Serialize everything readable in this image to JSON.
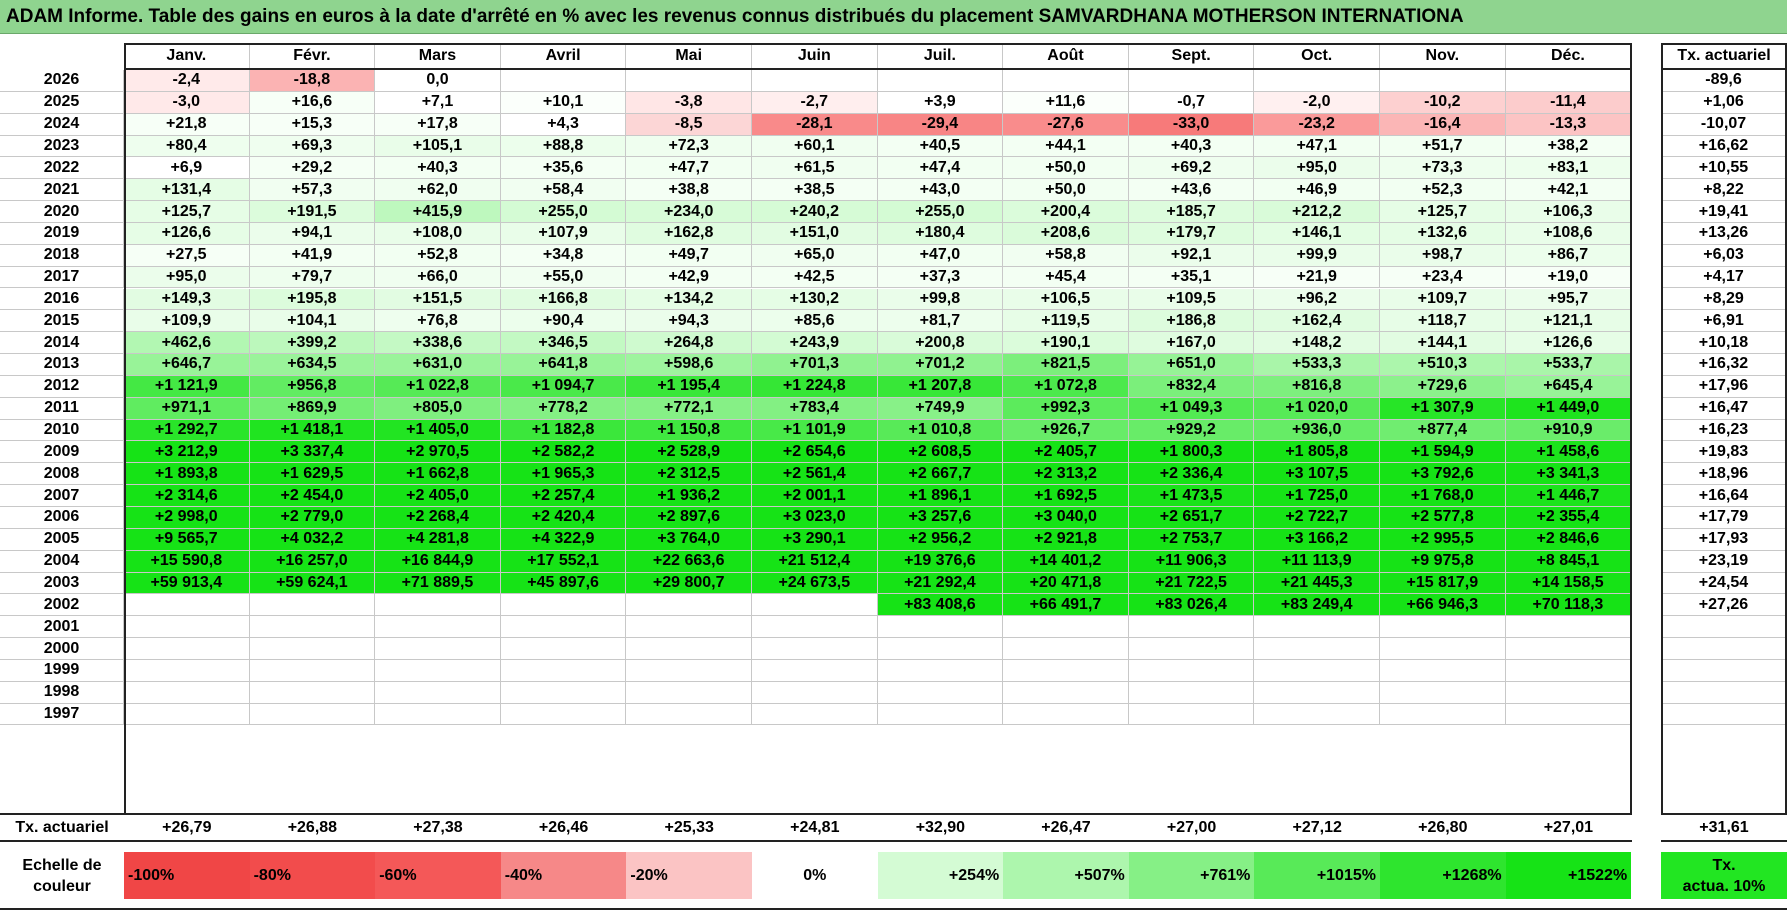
{
  "title": "ADAM Informe. Table des gains en euros à la date d'arrêté en % avec les revenus connus distribués du placement SAMVARDHANA MOTHERSON INTERNATIONA",
  "months": [
    "Janv.",
    "Févr.",
    "Mars",
    "Avril",
    "Mai",
    "Juin",
    "Juil.",
    "Août",
    "Sept.",
    "Oct.",
    "Nov.",
    "Déc."
  ],
  "tx_header": "Tx. actuariel",
  "rows": [
    {
      "year": "2026",
      "values": [
        "-2,4",
        "-18,8",
        "0,0",
        "",
        "",
        "",
        "",
        "",
        "",
        "",
        "",
        ""
      ],
      "colors": [
        "#ffeaea",
        "#fbb3b3",
        "#ffffff",
        "",
        "",
        "",
        "",
        "",
        "",
        "",
        "",
        ""
      ],
      "tx": "-89,6"
    },
    {
      "year": "2025",
      "values": [
        "-3,0",
        "+16,6",
        "+7,1",
        "+10,1",
        "-3,8",
        "-2,7",
        "+3,9",
        "+11,6",
        "-0,7",
        "-2,0",
        "-10,2",
        "-11,4"
      ],
      "colors": [
        "#ffe9e9",
        "#f7fff7",
        "#ffffff",
        "#fbfffb",
        "#ffe6e6",
        "#ffeeee",
        "#ffffff",
        "#fbfffb",
        "#ffffff",
        "#fff0f0",
        "#fdd0d0",
        "#fccccc"
      ],
      "tx": "+1,06"
    },
    {
      "year": "2024",
      "values": [
        "+21,8",
        "+15,3",
        "+17,8",
        "+4,3",
        "-8,5",
        "-28,1",
        "-29,4",
        "-27,6",
        "-33,0",
        "-23,2",
        "-16,4",
        "-13,3"
      ],
      "colors": [
        "#f7fff7",
        "#f7fff7",
        "#f7fff7",
        "#ffffff",
        "#fcd6d6",
        "#f98a8a",
        "#f88585",
        "#f98c8c",
        "#f77a7a",
        "#fa9a9a",
        "#fbb6b6",
        "#fcc4c4"
      ],
      "tx": "-10,07"
    },
    {
      "year": "2023",
      "values": [
        "+80,4",
        "+69,3",
        "+105,1",
        "+88,8",
        "+72,3",
        "+60,1",
        "+40,5",
        "+44,1",
        "+40,3",
        "+47,1",
        "+51,7",
        "+38,2"
      ],
      "colors": [
        "#eefeee",
        "#effeef",
        "#e9fde9",
        "#ecfeec",
        "#effeef",
        "#f0fef0",
        "#f3fff3",
        "#f3fff3",
        "#f3fff3",
        "#f2fff2",
        "#f2fff2",
        "#f4fff4"
      ],
      "tx": "+16,62"
    },
    {
      "year": "2022",
      "values": [
        "+6,9",
        "+29,2",
        "+40,3",
        "+35,6",
        "+47,7",
        "+61,5",
        "+47,4",
        "+50,0",
        "+69,2",
        "+95,0",
        "+73,3",
        "+83,1"
      ],
      "colors": [
        "#ffffff",
        "#f5fff5",
        "#f3fff3",
        "#f4fff4",
        "#f2fff2",
        "#f0fef0",
        "#f2fff2",
        "#f2fff2",
        "#effeef",
        "#ebfdeb",
        "#eefeee",
        "#edfeed"
      ],
      "tx": "+10,55"
    },
    {
      "year": "2021",
      "values": [
        "+131,4",
        "+57,3",
        "+62,0",
        "+58,4",
        "+38,8",
        "+38,5",
        "+43,0",
        "+50,0",
        "+43,6",
        "+46,9",
        "+52,3",
        "+42,1"
      ],
      "colors": [
        "#e5fde5",
        "#f1fef1",
        "#f0fef0",
        "#f1fef1",
        "#f4fff4",
        "#f4fff4",
        "#f3fff3",
        "#f2fff2",
        "#f3fff3",
        "#f2fff2",
        "#f2fff2",
        "#f3fff3"
      ],
      "tx": "+8,22"
    },
    {
      "year": "2020",
      "values": [
        "+125,7",
        "+191,5",
        "+415,9",
        "+255,0",
        "+234,0",
        "+240,2",
        "+255,0",
        "+200,4",
        "+185,7",
        "+212,2",
        "+125,7",
        "+106,3"
      ],
      "colors": [
        "#e6fde6",
        "#dcfcdc",
        "#bef8be",
        "#d4fbd4",
        "#d7fbd7",
        "#d6fbd6",
        "#d4fbd4",
        "#dbfcdb",
        "#ddfcdd",
        "#d9fbd9",
        "#e6fde6",
        "#e9fde9"
      ],
      "tx": "+19,41"
    },
    {
      "year": "2019",
      "values": [
        "+126,6",
        "+94,1",
        "+108,0",
        "+107,9",
        "+162,8",
        "+151,0",
        "+180,4",
        "+208,6",
        "+179,7",
        "+146,1",
        "+132,6",
        "+108,6"
      ],
      "colors": [
        "#e6fde6",
        "#ebfdeb",
        "#e9fde9",
        "#e9fde9",
        "#e0fce0",
        "#e2fce2",
        "#defcde",
        "#dafbda",
        "#defcde",
        "#e3fde3",
        "#e5fde5",
        "#e9fde9"
      ],
      "tx": "+13,26"
    },
    {
      "year": "2018",
      "values": [
        "+27,5",
        "+41,9",
        "+52,8",
        "+34,8",
        "+49,7",
        "+65,0",
        "+47,0",
        "+58,8",
        "+92,1",
        "+99,9",
        "+98,7",
        "+86,7"
      ],
      "colors": [
        "#f6fff6",
        "#f3fff3",
        "#f2fff2",
        "#f4fff4",
        "#f2fff2",
        "#f0fef0",
        "#f2fff2",
        "#f1fef1",
        "#ebfdeb",
        "#eafdea",
        "#eafdea",
        "#ecfeec"
      ],
      "tx": "+6,03"
    },
    {
      "year": "2017",
      "values": [
        "+95,0",
        "+79,7",
        "+66,0",
        "+55,0",
        "+42,9",
        "+42,5",
        "+37,3",
        "+45,4",
        "+35,1",
        "+21,9",
        "+23,4",
        "+19,0"
      ],
      "colors": [
        "#ebfdeb",
        "#eefeee",
        "#f0fef0",
        "#f1fef1",
        "#f3fff3",
        "#f3fff3",
        "#f4fff4",
        "#f3fff3",
        "#f4fff4",
        "#f7fff7",
        "#f6fff6",
        "#f7fff7"
      ],
      "tx": "+4,17"
    },
    {
      "year": "2016",
      "values": [
        "+149,3",
        "+195,8",
        "+151,5",
        "+166,8",
        "+134,2",
        "+130,2",
        "+99,8",
        "+106,5",
        "+109,5",
        "+96,2",
        "+109,7",
        "+95,7"
      ],
      "colors": [
        "#e2fce2",
        "#dcfcdc",
        "#e2fce2",
        "#e0fce0",
        "#e5fde5",
        "#e5fde5",
        "#eafdea",
        "#e9fde9",
        "#e9fde9",
        "#ebfdeb",
        "#e9fde9",
        "#ebfdeb"
      ],
      "tx": "+8,29"
    },
    {
      "year": "2015",
      "values": [
        "+109,9",
        "+104,1",
        "+76,8",
        "+90,4",
        "+94,3",
        "+85,6",
        "+81,7",
        "+119,5",
        "+186,8",
        "+162,4",
        "+118,7",
        "+121,1"
      ],
      "colors": [
        "#e9fde9",
        "#e9fde9",
        "#eefeee",
        "#ecfeec",
        "#ebfdeb",
        "#ecfeec",
        "#edfeed",
        "#e7fde7",
        "#ddfcdd",
        "#e0fce0",
        "#e7fde7",
        "#e7fde7"
      ],
      "tx": "+6,91"
    },
    {
      "year": "2014",
      "values": [
        "+462,6",
        "+399,2",
        "+338,6",
        "+346,5",
        "+264,8",
        "+243,9",
        "+200,8",
        "+190,1",
        "+167,0",
        "+148,2",
        "+144,1",
        "+126,6"
      ],
      "colors": [
        "#b2f7b2",
        "#bcf8bc",
        "#c4f9c4",
        "#c3f9c3",
        "#cffacf",
        "#d3fbd3",
        "#d9fbd9",
        "#dbfcdb",
        "#dffcdf",
        "#e2fce2",
        "#e2fce2",
        "#e6fde6"
      ],
      "tx": "+10,18"
    },
    {
      "year": "2013",
      "values": [
        "+646,7",
        "+634,5",
        "+631,0",
        "+641,8",
        "+598,6",
        "+701,3",
        "+701,2",
        "+821,5",
        "+651,0",
        "+533,3",
        "+510,3",
        "+533,7"
      ],
      "colors": [
        "#98f398",
        "#9af39a",
        "#9af39a",
        "#98f398",
        "#9ef49e",
        "#90f290",
        "#90f290",
        "#7cef7c",
        "#96f396",
        "#a9f5a9",
        "#acf6ac",
        "#a9f5a9"
      ],
      "tx": "+16,32"
    },
    {
      "year": "2012",
      "values": [
        "+1 121,9",
        "+956,8",
        "+1 022,8",
        "+1 094,7",
        "+1 195,4",
        "+1 224,8",
        "+1 207,8",
        "+1 072,8",
        "+832,4",
        "+816,8",
        "+729,6",
        "+645,4"
      ],
      "colors": [
        "#44e844",
        "#62ec62",
        "#56ea56",
        "#4ae94a",
        "#3ae73a",
        "#35e635",
        "#38e738",
        "#4ce94c",
        "#7bef7b",
        "#7eef7e",
        "#8cf18c",
        "#98f398"
      ],
      "tx": "+17,96"
    },
    {
      "year": "2011",
      "values": [
        "+971,1",
        "+869,9",
        "+805,0",
        "+778,2",
        "+772,1",
        "+783,4",
        "+749,9",
        "+992,3",
        "+1 049,3",
        "+1 020,0",
        "+1 307,9",
        "+1 449,0"
      ],
      "colors": [
        "#60ec60",
        "#74ee74",
        "#7fef7f",
        "#84f084",
        "#86f086",
        "#83f083",
        "#88f188",
        "#5ceb5c",
        "#52ea52",
        "#57ea57",
        "#27e527",
        "#1ee41e"
      ],
      "tx": "+16,47"
    },
    {
      "year": "2010",
      "values": [
        "+1 292,7",
        "+1 418,1",
        "+1 405,0",
        "+1 182,8",
        "+1 150,8",
        "+1 101,9",
        "+1 010,8",
        "+926,7",
        "+929,2",
        "+936,0",
        "+877,4",
        "+910,9"
      ],
      "colors": [
        "#29e529",
        "#20e420",
        "#22e422",
        "#3be73b",
        "#40e840",
        "#48e948",
        "#58ea58",
        "#68ec68",
        "#68ec68",
        "#66ec66",
        "#70ed70",
        "#6aec6a"
      ],
      "tx": "+16,23"
    },
    {
      "year": "2009",
      "values": [
        "+3 212,9",
        "+3 337,4",
        "+2 970,5",
        "+2 582,2",
        "+2 528,9",
        "+2 654,6",
        "+2 608,5",
        "+2 405,7",
        "+1 800,3",
        "+1 805,8",
        "+1 594,9",
        "+1 458,6"
      ],
      "colors": [
        "#16e316",
        "#16e316",
        "#16e316",
        "#16e316",
        "#16e316",
        "#16e316",
        "#16e316",
        "#16e316",
        "#16e316",
        "#16e316",
        "#16e316",
        "#1ce41c"
      ],
      "tx": "+19,83"
    },
    {
      "year": "2008",
      "values": [
        "+1 893,8",
        "+1 629,5",
        "+1 662,8",
        "+1 965,3",
        "+2 312,5",
        "+2 561,4",
        "+2 667,7",
        "+2 313,2",
        "+2 336,4",
        "+3 107,5",
        "+3 792,6",
        "+3 341,3"
      ],
      "colors": [
        "#16e316",
        "#16e316",
        "#16e316",
        "#16e316",
        "#16e316",
        "#16e316",
        "#16e316",
        "#16e316",
        "#16e316",
        "#16e316",
        "#16e316",
        "#16e316"
      ],
      "tx": "+18,96"
    },
    {
      "year": "2007",
      "values": [
        "+2 314,6",
        "+2 454,0",
        "+2 405,0",
        "+2 257,4",
        "+1 936,2",
        "+2 001,1",
        "+1 896,1",
        "+1 692,5",
        "+1 473,5",
        "+1 725,0",
        "+1 768,0",
        "+1 446,7"
      ],
      "colors": [
        "#16e316",
        "#16e316",
        "#16e316",
        "#16e316",
        "#16e316",
        "#16e316",
        "#16e316",
        "#16e316",
        "#1ae31a",
        "#16e316",
        "#16e316",
        "#1ce41c"
      ],
      "tx": "+16,64"
    },
    {
      "year": "2006",
      "values": [
        "+2 998,0",
        "+2 779,0",
        "+2 268,4",
        "+2 420,4",
        "+2 897,6",
        "+3 023,0",
        "+3 257,6",
        "+3 040,0",
        "+2 651,7",
        "+2 722,7",
        "+2 577,8",
        "+2 355,4"
      ],
      "colors": [
        "#16e316",
        "#16e316",
        "#16e316",
        "#16e316",
        "#16e316",
        "#16e316",
        "#16e316",
        "#16e316",
        "#16e316",
        "#16e316",
        "#16e316",
        "#16e316"
      ],
      "tx": "+17,79"
    },
    {
      "year": "2005",
      "values": [
        "+9 565,7",
        "+4 032,2",
        "+4 281,8",
        "+4 322,9",
        "+3 764,0",
        "+3 290,1",
        "+2 956,2",
        "+2 921,8",
        "+2 753,7",
        "+3 166,2",
        "+2 995,5",
        "+2 846,6"
      ],
      "colors": [
        "#16e316",
        "#16e316",
        "#16e316",
        "#16e316",
        "#16e316",
        "#16e316",
        "#16e316",
        "#16e316",
        "#16e316",
        "#16e316",
        "#16e316",
        "#16e316"
      ],
      "tx": "+17,93"
    },
    {
      "year": "2004",
      "values": [
        "+15 590,8",
        "+16 257,0",
        "+16 844,9",
        "+17 552,1",
        "+22 663,6",
        "+21 512,4",
        "+19 376,6",
        "+14 401,2",
        "+11 906,3",
        "+11 113,9",
        "+9 975,8",
        "+8 845,1"
      ],
      "colors": [
        "#16e316",
        "#16e316",
        "#16e316",
        "#16e316",
        "#16e316",
        "#16e316",
        "#16e316",
        "#16e316",
        "#16e316",
        "#16e316",
        "#16e316",
        "#16e316"
      ],
      "tx": "+23,19"
    },
    {
      "year": "2003",
      "values": [
        "+59 913,4",
        "+59 624,1",
        "+71 889,5",
        "+45 897,6",
        "+29 800,7",
        "+24 673,5",
        "+21 292,4",
        "+20 471,8",
        "+21 722,5",
        "+21 445,3",
        "+15 817,9",
        "+14 158,5"
      ],
      "colors": [
        "#16e316",
        "#16e316",
        "#16e316",
        "#16e316",
        "#16e316",
        "#16e316",
        "#16e316",
        "#16e316",
        "#16e316",
        "#16e316",
        "#16e316",
        "#16e316"
      ],
      "tx": "+24,54"
    },
    {
      "year": "2002",
      "values": [
        "",
        "",
        "",
        "",
        "",
        "",
        "+83 408,6",
        "+66 491,7",
        "+83 026,4",
        "+83 249,4",
        "+66 946,3",
        "+70 118,3"
      ],
      "colors": [
        "",
        "",
        "",
        "",
        "",
        "",
        "#16e316",
        "#16e316",
        "#16e316",
        "#16e316",
        "#16e316",
        "#16e316"
      ],
      "tx": "+27,26"
    },
    {
      "year": "2001",
      "values": [
        "",
        "",
        "",
        "",
        "",
        "",
        "",
        "",
        "",
        "",
        "",
        ""
      ],
      "colors": [
        "",
        "",
        "",
        "",
        "",
        "",
        "",
        "",
        "",
        "",
        "",
        ""
      ],
      "tx": ""
    },
    {
      "year": "2000",
      "values": [
        "",
        "",
        "",
        "",
        "",
        "",
        "",
        "",
        "",
        "",
        "",
        ""
      ],
      "colors": [
        "",
        "",
        "",
        "",
        "",
        "",
        "",
        "",
        "",
        "",
        "",
        ""
      ],
      "tx": ""
    },
    {
      "year": "1999",
      "values": [
        "",
        "",
        "",
        "",
        "",
        "",
        "",
        "",
        "",
        "",
        "",
        ""
      ],
      "colors": [
        "",
        "",
        "",
        "",
        "",
        "",
        "",
        "",
        "",
        "",
        "",
        ""
      ],
      "tx": ""
    },
    {
      "year": "1998",
      "values": [
        "",
        "",
        "",
        "",
        "",
        "",
        "",
        "",
        "",
        "",
        "",
        ""
      ],
      "colors": [
        "",
        "",
        "",
        "",
        "",
        "",
        "",
        "",
        "",
        "",
        "",
        ""
      ],
      "tx": ""
    },
    {
      "year": "1997",
      "values": [
        "",
        "",
        "",
        "",
        "",
        "",
        "",
        "",
        "",
        "",
        "",
        ""
      ],
      "colors": [
        "",
        "",
        "",
        "",
        "",
        "",
        "",
        "",
        "",
        "",
        "",
        ""
      ],
      "tx": ""
    }
  ],
  "summary": {
    "label": "Tx. actuariel",
    "values": [
      "+26,79",
      "+26,88",
      "+27,38",
      "+26,46",
      "+25,33",
      "+24,81",
      "+32,90",
      "+26,47",
      "+27,00",
      "+27,12",
      "+26,80",
      "+27,01"
    ],
    "total": "+31,61"
  },
  "scale": {
    "label_line1": "Echelle de",
    "label_line2": "couleur",
    "items": [
      {
        "text": "-100%",
        "color": "#f04646",
        "align": "left"
      },
      {
        "text": "-80%",
        "color": "#f24c4c",
        "align": "left"
      },
      {
        "text": "-60%",
        "color": "#f45858",
        "align": "left"
      },
      {
        "text": "-40%",
        "color": "#f68888",
        "align": "left"
      },
      {
        "text": "-20%",
        "color": "#fbc4c4",
        "align": "left"
      },
      {
        "text": "0%",
        "color": "#ffffff",
        "align": "center"
      },
      {
        "text": "+254%",
        "color": "#d4fbd4",
        "align": "right"
      },
      {
        "text": "+507%",
        "color": "#adf6ad",
        "align": "right"
      },
      {
        "text": "+761%",
        "color": "#86f086",
        "align": "right"
      },
      {
        "text": "+1015%",
        "color": "#58ea58",
        "align": "right"
      },
      {
        "text": "+1268%",
        "color": "#2ee52e",
        "align": "right"
      },
      {
        "text": "+1522%",
        "color": "#16e316",
        "align": "right"
      }
    ],
    "tx_ref_line1": "Tx.",
    "tx_ref_line2": "actua. 10%",
    "tx_ref_color": "#22e622"
  }
}
